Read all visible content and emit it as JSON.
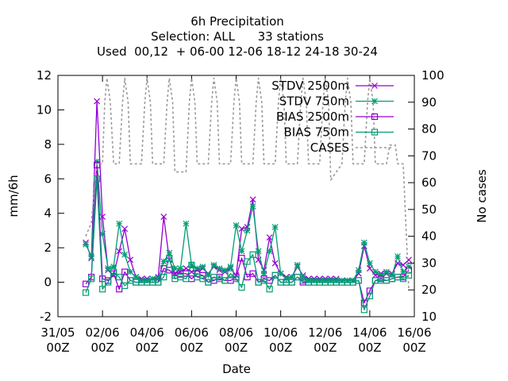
{
  "chart_data": {
    "type": "line",
    "title_lines": [
      "6h Precipitation",
      "Selection: ALL      33 stations",
      "Used  00,12  + 06-00 12-06 18-12 24-18 30-24"
    ],
    "xlabel": "Date",
    "ylabel": "mm/6h",
    "y2label": "No cases",
    "xlim": [
      0,
      16
    ],
    "ylim": [
      -2,
      12
    ],
    "y2lim": [
      10,
      100
    ],
    "x_unit": "days since 31/05 00Z",
    "x_ticks": [
      {
        "v": 0,
        "l1": "31/05",
        "l2": "00Z"
      },
      {
        "v": 2,
        "l1": "02/06",
        "l2": "00Z"
      },
      {
        "v": 4,
        "l1": "04/06",
        "l2": "00Z"
      },
      {
        "v": 6,
        "l1": "06/06",
        "l2": "00Z"
      },
      {
        "v": 8,
        "l1": "08/06",
        "l2": "00Z"
      },
      {
        "v": 10,
        "l1": "10/06",
        "l2": "00Z"
      },
      {
        "v": 12,
        "l1": "12/06",
        "l2": "00Z"
      },
      {
        "v": 14,
        "l1": "14/06",
        "l2": "00Z"
      },
      {
        "v": 16,
        "l1": "16/06",
        "l2": "00Z"
      }
    ],
    "y_ticks": [
      -2,
      0,
      2,
      4,
      6,
      8,
      10,
      12
    ],
    "y2_ticks": [
      10,
      20,
      30,
      40,
      50,
      60,
      70,
      80,
      90,
      100
    ],
    "legend_position": "top-right",
    "x": [
      1.25,
      1.5,
      1.75,
      2.0,
      2.25,
      2.5,
      2.75,
      3.0,
      3.25,
      3.5,
      3.75,
      4.0,
      4.25,
      4.5,
      4.75,
      5.0,
      5.25,
      5.5,
      5.75,
      6.0,
      6.25,
      6.5,
      6.75,
      7.0,
      7.25,
      7.5,
      7.75,
      8.0,
      8.25,
      8.5,
      8.75,
      9.0,
      9.25,
      9.5,
      9.75,
      10.0,
      10.25,
      10.5,
      10.75,
      11.0,
      11.25,
      11.5,
      11.75,
      12.0,
      12.25,
      12.5,
      12.75,
      13.0,
      13.25,
      13.5,
      13.75,
      14.0,
      14.25,
      14.5,
      14.75,
      15.0,
      15.25,
      15.5,
      15.75
    ],
    "series": [
      {
        "name": "STDV 2500m",
        "color": "#9400d3",
        "axis": "y",
        "marker": "x-star",
        "values": [
          2.3,
          1.4,
          10.5,
          3.8,
          0.7,
          0.4,
          1.8,
          3.1,
          1.3,
          0.3,
          0.2,
          0.2,
          0.2,
          0.3,
          3.8,
          1.3,
          0.5,
          0.6,
          0.8,
          0.6,
          0.7,
          0.8,
          0.5,
          0.9,
          0.7,
          0.6,
          0.8,
          0.4,
          3.1,
          3.2,
          4.8,
          1.3,
          0.7,
          2.6,
          1.1,
          0.5,
          0.3,
          0.3,
          0.9,
          0.4,
          0.2,
          0.2,
          0.2,
          0.2,
          0.2,
          0.2,
          0.1,
          0.1,
          0.1,
          0.5,
          2.1,
          0.8,
          0.4,
          0.5,
          0.5,
          0.5,
          1.1,
          1.0,
          1.3
        ]
      },
      {
        "name": "STDV 750m",
        "color": "#009e73",
        "axis": "y",
        "marker": "asterisk",
        "values": [
          2.2,
          1.5,
          7.0,
          2.8,
          0.8,
          0.9,
          3.4,
          1.6,
          0.6,
          0.3,
          0.1,
          0.1,
          0.2,
          0.2,
          1.2,
          1.7,
          0.8,
          0.8,
          3.4,
          1.0,
          0.8,
          0.9,
          0.4,
          1.0,
          0.8,
          0.7,
          0.9,
          3.3,
          1.8,
          3.0,
          4.4,
          1.8,
          0.5,
          1.8,
          3.2,
          0.5,
          0.2,
          0.3,
          1.0,
          0.3,
          0.1,
          0.1,
          0.1,
          0.1,
          0.1,
          0.1,
          0.1,
          0.1,
          0.1,
          0.7,
          2.3,
          1.1,
          0.6,
          0.4,
          0.6,
          0.4,
          1.5,
          0.6,
          0.9
        ]
      },
      {
        "name": "BIAS 2500m",
        "color": "#9400d3",
        "axis": "y",
        "marker": "square",
        "values": [
          -0.1,
          0.3,
          6.8,
          0.2,
          0.1,
          0.5,
          -0.4,
          0.6,
          0.1,
          0.0,
          0.0,
          0.0,
          0.0,
          0.0,
          0.8,
          0.7,
          0.4,
          0.5,
          0.5,
          0.2,
          0.5,
          0.4,
          0.0,
          0.1,
          0.3,
          0.1,
          0.1,
          0.3,
          1.4,
          0.3,
          0.5,
          0.0,
          0.2,
          0.1,
          0.4,
          0.0,
          0.0,
          0.0,
          0.3,
          0.0,
          0.0,
          0.0,
          0.0,
          0.0,
          0.0,
          0.0,
          0.0,
          0.0,
          0.0,
          0.1,
          -1.2,
          -0.5,
          0.1,
          0.2,
          0.1,
          0.2,
          0.3,
          0.3,
          0.7
        ]
      },
      {
        "name": "BIAS 750m",
        "color": "#009e73",
        "axis": "y",
        "marker": "square",
        "values": [
          -0.6,
          0.2,
          6.0,
          -0.4,
          0.0,
          0.6,
          0.3,
          -0.2,
          0.1,
          0.0,
          0.0,
          0.0,
          0.0,
          0.0,
          0.3,
          1.4,
          0.2,
          0.3,
          0.2,
          1.0,
          0.3,
          0.2,
          0.0,
          0.3,
          0.2,
          0.1,
          0.5,
          0.2,
          -0.3,
          1.2,
          1.6,
          0.0,
          0.1,
          -0.4,
          0.4,
          0.0,
          0.0,
          0.0,
          0.3,
          0.1,
          0.0,
          0.0,
          0.0,
          0.0,
          0.0,
          0.0,
          0.0,
          0.0,
          0.0,
          0.1,
          -1.6,
          -0.8,
          0.1,
          0.1,
          0.1,
          0.2,
          0.3,
          0.2,
          0.4
        ]
      },
      {
        "name": "CASES",
        "color": "#999999",
        "axis": "y2",
        "dashed": true,
        "x": [
          1.25,
          1.5,
          1.75,
          2.0,
          2.1,
          2.2,
          2.35,
          2.5,
          2.75,
          2.9,
          3.0,
          3.15,
          3.25,
          3.5,
          3.75,
          3.9,
          4.0,
          4.15,
          4.25,
          4.5,
          4.75,
          4.9,
          5.0,
          5.15,
          5.25,
          5.5,
          5.75,
          5.9,
          6.0,
          6.15,
          6.25,
          6.5,
          6.75,
          6.9,
          7.0,
          7.15,
          7.25,
          7.5,
          7.75,
          7.9,
          8.0,
          8.15,
          8.25,
          8.5,
          8.75,
          8.9,
          9.0,
          9.15,
          9.25,
          9.5,
          9.75,
          9.9,
          10.0,
          10.15,
          10.25,
          10.5,
          10.75,
          10.9,
          11.0,
          11.15,
          11.25,
          11.5,
          11.75,
          11.9,
          12.0,
          12.15,
          12.25,
          12.5,
          12.75,
          12.9,
          13.0,
          13.15,
          13.25,
          13.5,
          13.75,
          13.9,
          14.0,
          14.15,
          14.25,
          14.5,
          14.75,
          14.9,
          15.0,
          15.15,
          15.25,
          15.5,
          15.75
        ],
        "values": [
          40,
          45,
          67,
          67,
          90,
          99,
          90,
          67,
          67,
          90,
          99,
          90,
          67,
          67,
          67,
          90,
          99,
          90,
          67,
          67,
          67,
          90,
          99,
          90,
          64,
          64,
          64,
          90,
          99,
          90,
          67,
          67,
          67,
          90,
          99,
          90,
          67,
          67,
          67,
          90,
          99,
          90,
          67,
          67,
          67,
          90,
          99,
          90,
          67,
          67,
          67,
          90,
          99,
          90,
          67,
          67,
          67,
          90,
          99,
          90,
          67,
          67,
          67,
          90,
          99,
          90,
          61,
          64,
          67,
          90,
          99,
          90,
          67,
          67,
          67,
          90,
          99,
          90,
          67,
          67,
          67,
          74,
          74,
          74,
          67,
          67,
          20
        ]
      }
    ]
  }
}
